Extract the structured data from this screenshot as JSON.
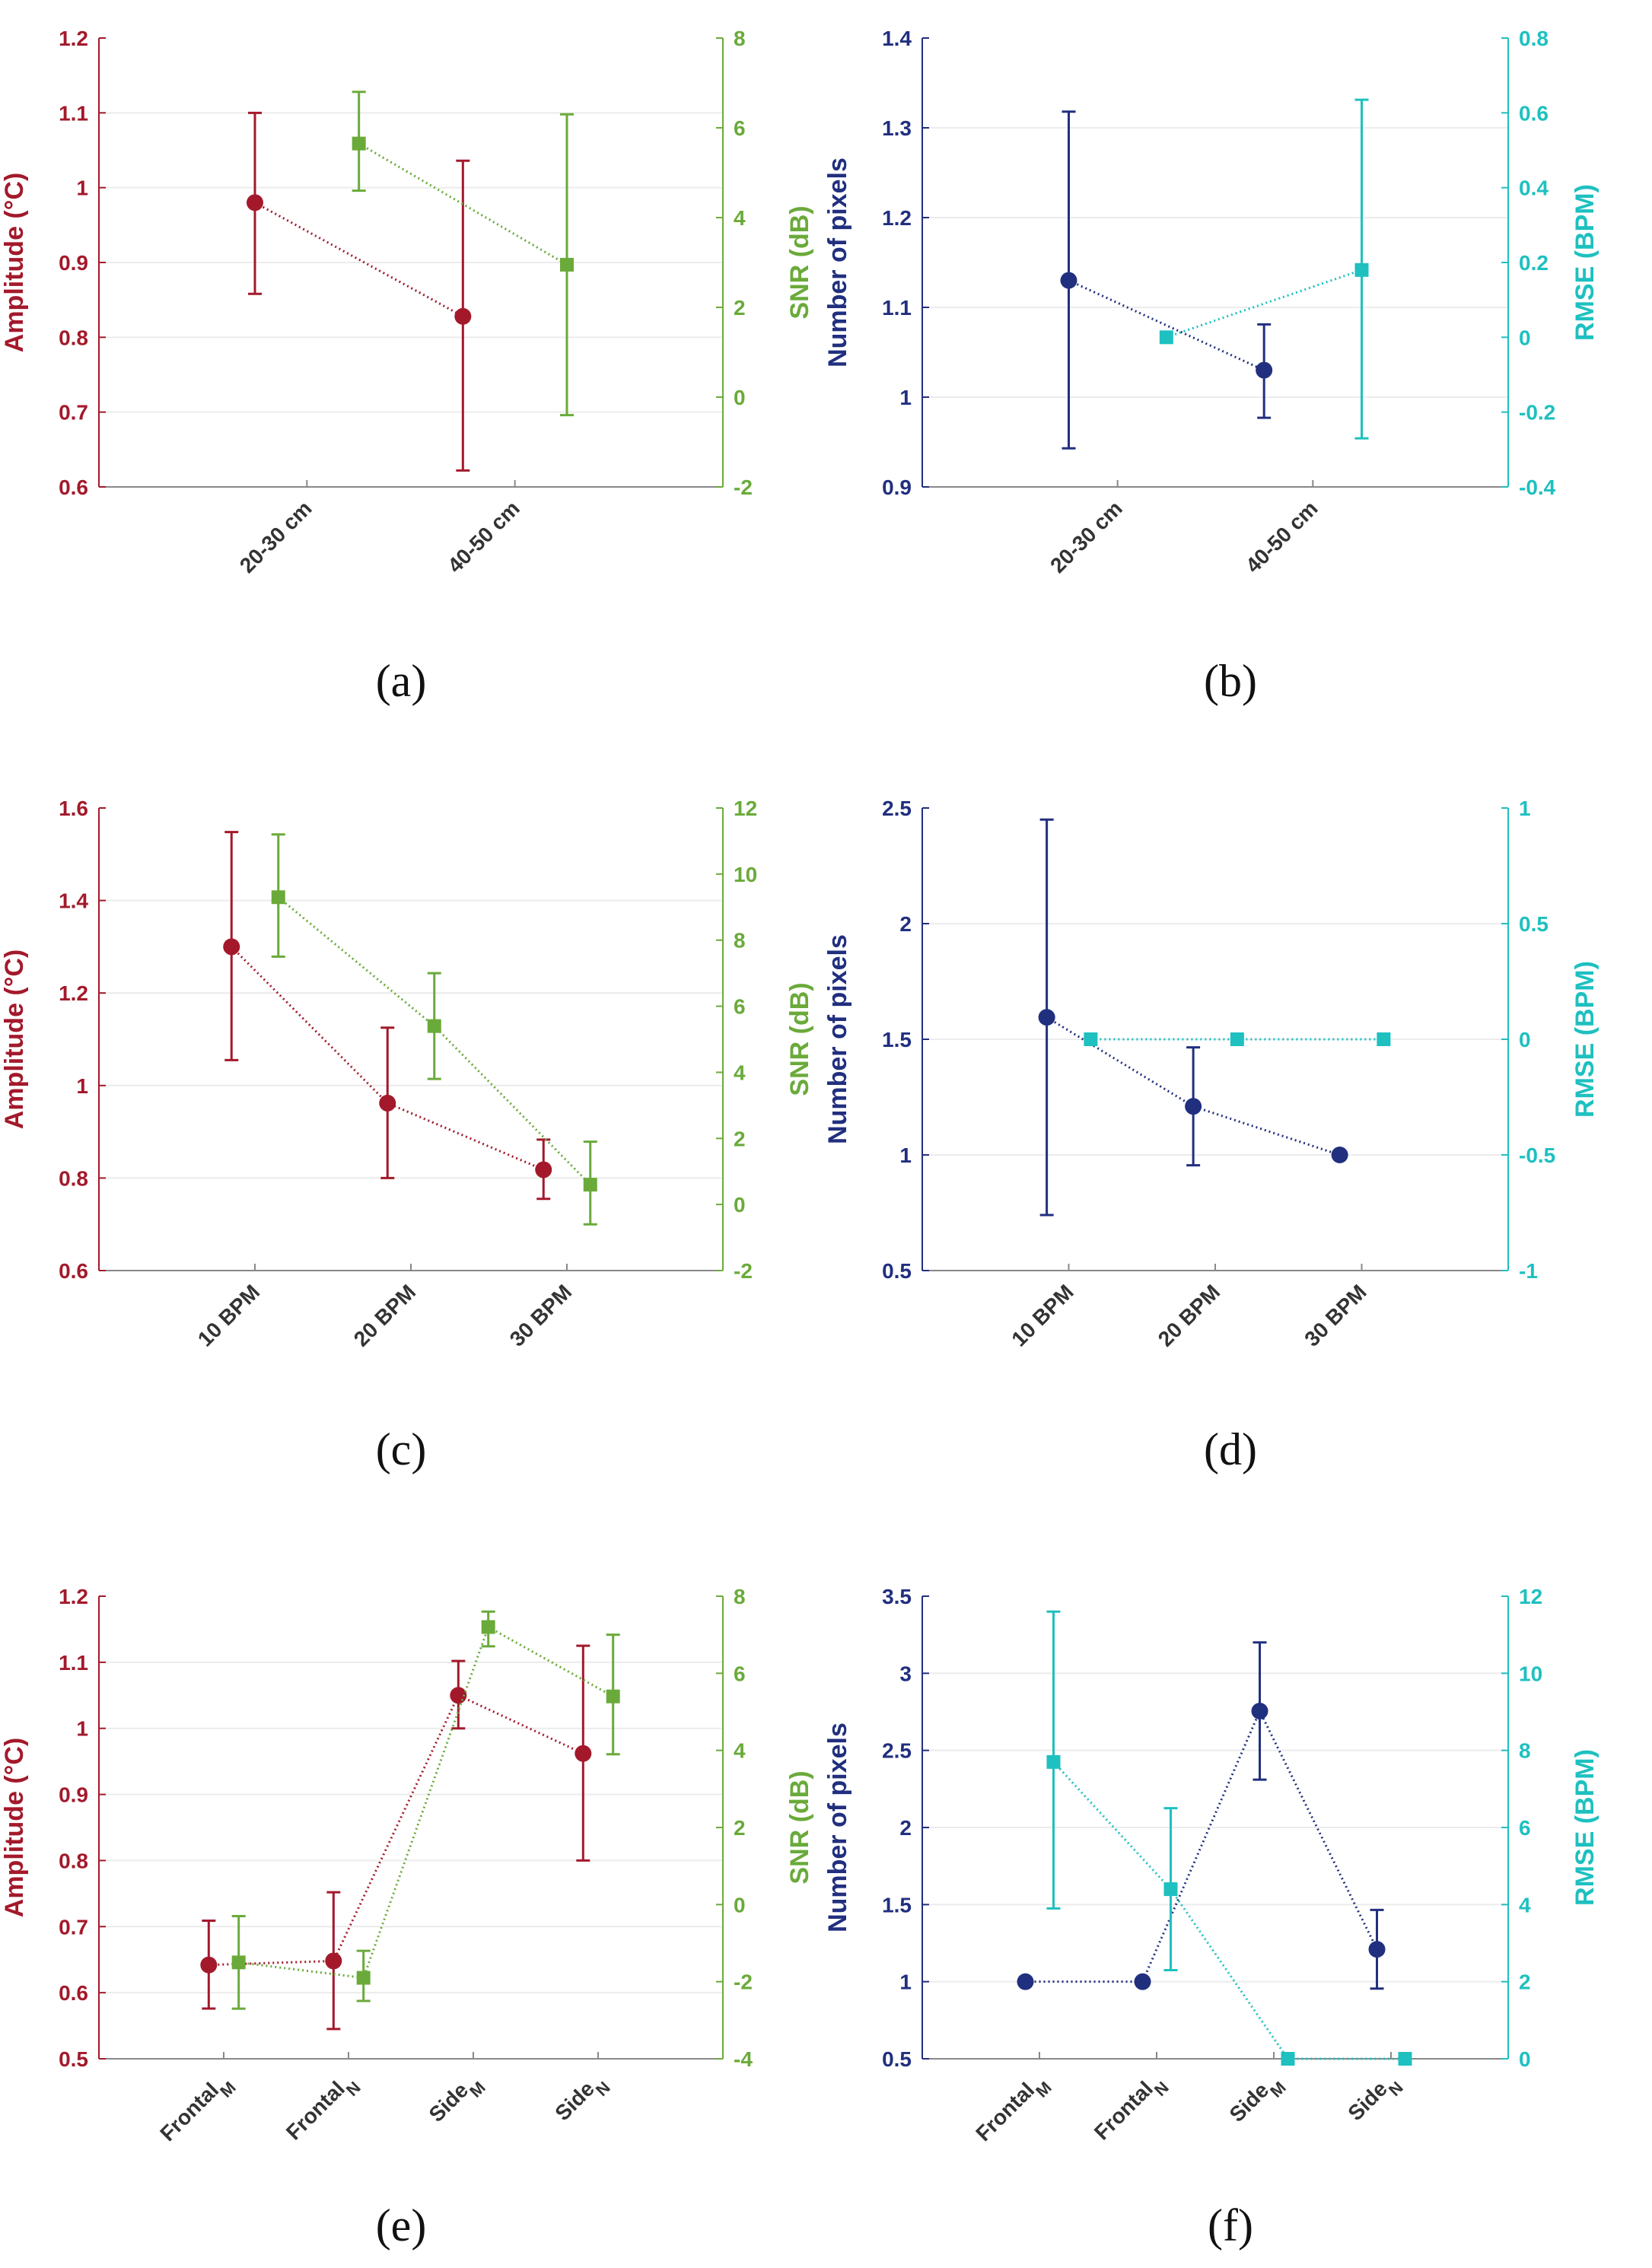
{
  "colors": {
    "amplitude": "#a3192b",
    "snr": "#6aaa3a",
    "pixels": "#212f7f",
    "rmse": "#1ec0c0",
    "grid": "#ececec",
    "axis": "#888888"
  },
  "chart_data": [
    {
      "panel": "(a)",
      "type": "line",
      "categories": [
        {
          "main": "20-30 cm",
          "sub": ""
        },
        {
          "main": "40-50 cm",
          "sub": ""
        }
      ],
      "left": {
        "label": "Amplitude (°C)",
        "color_key": "amplitude",
        "ylim": [
          0.6,
          1.2
        ],
        "ticks": [
          0.6,
          0.7,
          0.8,
          0.9,
          1,
          1.1,
          1.2
        ],
        "tick_labels": [
          "0.6",
          "0.7",
          "0.8",
          "0.9",
          "1",
          "1.1",
          "1.2"
        ]
      },
      "right": {
        "label": "SNR (dB)",
        "color_key": "snr",
        "ylim": [
          -2,
          8
        ],
        "ticks": [
          -2,
          0,
          2,
          4,
          6,
          8
        ],
        "tick_labels": [
          "-2",
          "0",
          "2",
          "4",
          "6",
          "8"
        ]
      },
      "series": [
        {
          "name": "Amplitude",
          "axis": "left",
          "marker": "circle",
          "offset": -0.25,
          "values": [
            0.98,
            0.828
          ],
          "err_low": [
            0.858,
            0.622
          ],
          "err_high": [
            1.1,
            1.036
          ]
        },
        {
          "name": "SNR",
          "axis": "right",
          "marker": "square",
          "offset": 0.25,
          "values": [
            5.65,
            2.95
          ],
          "err_low": [
            4.6,
            -0.4
          ],
          "err_high": [
            6.8,
            6.3
          ]
        }
      ]
    },
    {
      "panel": "(b)",
      "type": "line",
      "categories": [
        {
          "main": "20-30 cm",
          "sub": ""
        },
        {
          "main": "40-50 cm",
          "sub": ""
        }
      ],
      "left": {
        "label": "Number of pixels",
        "color_key": "pixels",
        "ylim": [
          0.9,
          1.4
        ],
        "ticks": [
          0.9,
          1,
          1.1,
          1.2,
          1.3,
          1.4
        ],
        "tick_labels": [
          "0.9",
          "1",
          "1.1",
          "1.2",
          "1.3",
          "1.4"
        ]
      },
      "right": {
        "label": "RMSE (BPM)",
        "color_key": "rmse",
        "ylim": [
          -0.4,
          0.8
        ],
        "ticks": [
          -0.4,
          -0.2,
          0,
          0.2,
          0.4,
          0.6,
          0.8
        ],
        "tick_labels": [
          "-0.4",
          "-0.2",
          "0",
          "0.2",
          "0.4",
          "0.6",
          "0.8"
        ]
      },
      "series": [
        {
          "name": "Number of pixels",
          "axis": "left",
          "marker": "circle",
          "offset": -0.25,
          "values": [
            1.13,
            1.03
          ],
          "err_low": [
            0.943,
            0.977
          ],
          "err_high": [
            1.318,
            1.081
          ]
        },
        {
          "name": "RMSE",
          "axis": "right",
          "marker": "square",
          "offset": 0.25,
          "values": [
            0.0,
            0.18
          ],
          "err_low": [
            null,
            -0.27
          ],
          "err_high": [
            null,
            0.635
          ]
        }
      ]
    },
    {
      "panel": "(c)",
      "type": "line",
      "categories": [
        {
          "main": "10 BPM",
          "sub": ""
        },
        {
          "main": "20 BPM",
          "sub": ""
        },
        {
          "main": "30 BPM",
          "sub": ""
        }
      ],
      "left": {
        "label": "Amplitude (°C)",
        "color_key": "amplitude",
        "ylim": [
          0.6,
          1.6
        ],
        "ticks": [
          0.6,
          0.8,
          1,
          1.2,
          1.4,
          1.6
        ],
        "tick_labels": [
          "0.6",
          "0.8",
          "1",
          "1.2",
          "1.4",
          "1.6"
        ]
      },
      "right": {
        "label": "SNR (dB)",
        "color_key": "snr",
        "ylim": [
          -2,
          12
        ],
        "ticks": [
          -2,
          0,
          2,
          4,
          6,
          8,
          10,
          12
        ],
        "tick_labels": [
          "-2",
          "0",
          "2",
          "4",
          "6",
          "8",
          "10",
          "12"
        ]
      },
      "series": [
        {
          "name": "Amplitude",
          "axis": "left",
          "marker": "circle",
          "offset": -0.15,
          "values": [
            1.3,
            0.962,
            0.818
          ],
          "err_low": [
            1.055,
            0.8,
            0.755
          ],
          "err_high": [
            1.548,
            1.125,
            0.883
          ]
        },
        {
          "name": "SNR",
          "axis": "right",
          "marker": "square",
          "offset": 0.15,
          "values": [
            9.3,
            5.4,
            0.6
          ],
          "err_low": [
            7.5,
            3.8,
            -0.6
          ],
          "err_high": [
            11.2,
            7.0,
            1.9
          ]
        }
      ]
    },
    {
      "panel": "(d)",
      "type": "line",
      "categories": [
        {
          "main": "10 BPM",
          "sub": ""
        },
        {
          "main": "20 BPM",
          "sub": ""
        },
        {
          "main": "30 BPM",
          "sub": ""
        }
      ],
      "left": {
        "label": "Number of pixels",
        "color_key": "pixels",
        "ylim": [
          0.5,
          2.5
        ],
        "ticks": [
          0.5,
          1,
          1.5,
          2,
          2.5
        ],
        "tick_labels": [
          "0.5",
          "1",
          "1.5",
          "2",
          "2.5"
        ]
      },
      "right": {
        "label": "RMSE (BPM)",
        "color_key": "rmse",
        "ylim": [
          -1,
          1
        ],
        "ticks": [
          -1,
          -0.5,
          0,
          0.5,
          1
        ],
        "tick_labels": [
          "-1",
          "-0.5",
          "0",
          "0.5",
          "1"
        ]
      },
      "series": [
        {
          "name": "Number of pixels",
          "axis": "left",
          "marker": "circle",
          "offset": -0.15,
          "values": [
            1.595,
            1.21,
            1.0
          ],
          "err_low": [
            0.74,
            0.955,
            null
          ],
          "err_high": [
            2.45,
            1.465,
            null
          ]
        },
        {
          "name": "RMSE",
          "axis": "right",
          "marker": "square",
          "offset": 0.15,
          "values": [
            0,
            0,
            0
          ],
          "err_low": [
            null,
            null,
            null
          ],
          "err_high": [
            null,
            null,
            null
          ]
        }
      ]
    },
    {
      "panel": "(e)",
      "type": "line",
      "categories": [
        {
          "main": "Frontal",
          "sub": "M"
        },
        {
          "main": "Frontal",
          "sub": "N"
        },
        {
          "main": "Side",
          "sub": "M"
        },
        {
          "main": "Side",
          "sub": "N"
        }
      ],
      "left": {
        "label": "Amplitude (°C)",
        "color_key": "amplitude",
        "ylim": [
          0.5,
          1.2
        ],
        "ticks": [
          0.5,
          0.6,
          0.7,
          0.8,
          0.9,
          1,
          1.1,
          1.2
        ],
        "tick_labels": [
          "0.5",
          "0.6",
          "0.7",
          "0.8",
          "0.9",
          "1",
          "1.1",
          "1.2"
        ]
      },
      "right": {
        "label": "SNR (dB)",
        "color_key": "snr",
        "ylim": [
          -4,
          8
        ],
        "ticks": [
          -4,
          -2,
          0,
          2,
          4,
          6,
          8
        ],
        "tick_labels": [
          "-4",
          "-2",
          "0",
          "2",
          "4",
          "6",
          "8"
        ]
      },
      "series": [
        {
          "name": "Amplitude",
          "axis": "left",
          "marker": "circle",
          "offset": -0.12,
          "values": [
            0.642,
            0.648,
            1.05,
            0.962
          ],
          "err_low": [
            0.576,
            0.545,
            1.0,
            0.8
          ],
          "err_high": [
            0.709,
            0.752,
            1.102,
            1.125
          ]
        },
        {
          "name": "SNR",
          "axis": "right",
          "marker": "square",
          "offset": 0.12,
          "values": [
            -1.5,
            -1.9,
            7.2,
            5.4
          ],
          "err_low": [
            -2.7,
            -2.5,
            6.7,
            3.9
          ],
          "err_high": [
            -0.3,
            -1.2,
            7.6,
            7.0
          ]
        }
      ]
    },
    {
      "panel": "(f)",
      "type": "line",
      "categories": [
        {
          "main": "Frontal",
          "sub": "M"
        },
        {
          "main": "Frontal",
          "sub": "N"
        },
        {
          "main": "Side",
          "sub": "M"
        },
        {
          "main": "Side",
          "sub": "N"
        }
      ],
      "left": {
        "label": "Number of pixels",
        "color_key": "pixels",
        "ylim": [
          0.5,
          3.5
        ],
        "ticks": [
          0.5,
          1,
          1.5,
          2,
          2.5,
          3,
          3.5
        ],
        "tick_labels": [
          "0.5",
          "1",
          "1.5",
          "2",
          "2.5",
          "3",
          "3.5"
        ]
      },
      "right": {
        "label": "RMSE (BPM)",
        "color_key": "rmse",
        "ylim": [
          0,
          12
        ],
        "ticks": [
          0,
          2,
          4,
          6,
          8,
          10,
          12
        ],
        "tick_labels": [
          "0",
          "2",
          "4",
          "6",
          "8",
          "10",
          "12"
        ]
      },
      "series": [
        {
          "name": "Number of pixels",
          "axis": "left",
          "marker": "circle",
          "offset": -0.12,
          "values": [
            1.0,
            1.0,
            2.755,
            1.21
          ],
          "err_low": [
            null,
            null,
            2.31,
            0.955
          ],
          "err_high": [
            null,
            null,
            3.2,
            1.465
          ]
        },
        {
          "name": "RMSE",
          "axis": "right",
          "marker": "square",
          "offset": 0.12,
          "values": [
            7.7,
            4.4,
            0,
            0
          ],
          "err_low": [
            3.9,
            2.3,
            null,
            null
          ],
          "err_high": [
            11.6,
            6.5,
            null,
            null
          ]
        }
      ]
    }
  ]
}
